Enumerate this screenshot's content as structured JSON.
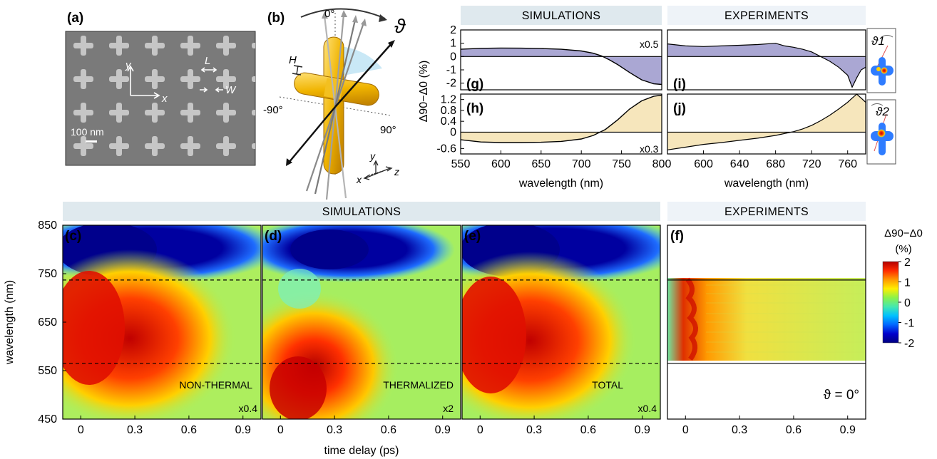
{
  "panels": {
    "a": "(a)",
    "b": "(b)",
    "c": "(c)",
    "d": "(d)",
    "e": "(e)",
    "f": "(f)",
    "g": "(g)",
    "h": "(h)",
    "i": "(i)",
    "j": "(j)"
  },
  "headers": {
    "top_sim": "SIMULATIONS",
    "top_exp": "EXPERIMENTS",
    "bottom_sim": "SIMULATIONS",
    "bottom_exp": "EXPERIMENTS"
  },
  "sem": {
    "x_label": "x",
    "y_label": "y",
    "L_label": "L",
    "W_label": "W",
    "scale_bar": "100 nm"
  },
  "schematic": {
    "theta_symbol": "ϑ",
    "H_label": "H",
    "angle_top": "0°",
    "angle_left": "-90°",
    "angle_right": "90°",
    "axis_x": "x",
    "axis_y": "y",
    "axis_z": "z"
  },
  "insets": {
    "i_label": "ϑ1",
    "j_label": "ϑ2"
  },
  "colorbar": {
    "title": "Δ90−Δ0",
    "unit": "(%)",
    "ticks": [
      "2",
      "1",
      "0",
      "-1",
      "-2"
    ],
    "colors": [
      "#b30000",
      "#ff2a00",
      "#ff9900",
      "#ffee00",
      "#8cf24a",
      "#44e8b0",
      "#00c0ff",
      "#0066ff",
      "#0000cc",
      "#000080"
    ]
  },
  "scale_notes": {
    "g": "x0.5",
    "h": "x0.3",
    "c": "x0.4",
    "d": "x2",
    "e": "x0.4"
  },
  "maps": {
    "c_label": "NON-THERMAL",
    "d_label": "THERMALIZED",
    "e_label": "TOTAL",
    "f_label": "ϑ = 0°"
  },
  "chart_data": [
    {
      "type": "area",
      "panel": "g",
      "xlim": [
        550,
        800
      ],
      "ylim": [
        -2.5,
        2
      ],
      "x_ticks": [
        "550",
        "600",
        "650",
        "700",
        "750",
        "800"
      ],
      "y_ticks": [
        "2",
        "1",
        "0",
        "-1",
        "-2"
      ],
      "xlabel": "wavelength (nm)",
      "ylabel": "Δ90−Δ0 (%)",
      "x": [
        550,
        575,
        600,
        625,
        650,
        675,
        700,
        715,
        725,
        735,
        745,
        760,
        775,
        790,
        800
      ],
      "y": [
        0.55,
        0.62,
        0.64,
        0.63,
        0.6,
        0.55,
        0.42,
        0.25,
        0.05,
        -0.25,
        -0.6,
        -1.2,
        -1.75,
        -2.05,
        -2.1
      ]
    },
    {
      "type": "area",
      "panel": "h",
      "xlim": [
        550,
        800
      ],
      "ylim": [
        -0.8,
        1.4
      ],
      "x_ticks": [
        "550",
        "600",
        "650",
        "700",
        "750",
        "800"
      ],
      "y_ticks": [
        "1.2",
        "0.8",
        "0.4",
        "0",
        "-0.6"
      ],
      "xlabel": "wavelength (nm)",
      "ylabel": "Δ90−Δ0 (%)",
      "x": [
        550,
        575,
        600,
        625,
        650,
        675,
        700,
        715,
        730,
        745,
        760,
        775,
        790,
        800
      ],
      "y": [
        -0.28,
        -0.36,
        -0.38,
        -0.38,
        -0.37,
        -0.34,
        -0.25,
        -0.12,
        0.1,
        0.45,
        0.85,
        1.15,
        1.32,
        1.36
      ]
    },
    {
      "type": "area",
      "panel": "i",
      "xlim": [
        560,
        780
      ],
      "ylim": [
        -2.5,
        2
      ],
      "x_ticks": [
        "600",
        "640",
        "680",
        "720",
        "760"
      ],
      "y_ticks": [
        "2",
        "1",
        "0",
        "-1",
        "-2"
      ],
      "xlabel": "wavelength (nm)",
      "x": [
        560,
        580,
        600,
        620,
        640,
        660,
        680,
        690,
        700,
        710,
        720,
        730,
        740,
        750,
        760,
        765,
        770,
        775,
        780
      ],
      "y": [
        0.95,
        0.8,
        0.75,
        0.8,
        0.85,
        0.9,
        1.0,
        0.8,
        0.7,
        0.55,
        0.35,
        0.0,
        -0.35,
        -0.8,
        -1.4,
        -2.3,
        -1.6,
        -1.0,
        -0.8
      ]
    },
    {
      "type": "area",
      "panel": "j",
      "xlim": [
        560,
        780
      ],
      "ylim": [
        -0.8,
        1.4
      ],
      "x_ticks": [
        "600",
        "640",
        "680",
        "720",
        "760"
      ],
      "y_ticks": [
        "1.2",
        "0.8",
        "0.4",
        "0",
        "-0.6"
      ],
      "xlabel": "wavelength (nm)",
      "x": [
        560,
        580,
        600,
        620,
        640,
        660,
        680,
        700,
        710,
        720,
        730,
        740,
        750,
        760,
        765,
        770,
        775,
        780
      ],
      "y": [
        -0.65,
        -0.55,
        -0.45,
        -0.38,
        -0.3,
        -0.22,
        -0.12,
        0.02,
        0.12,
        0.25,
        0.42,
        0.62,
        0.85,
        1.1,
        1.25,
        1.4,
        1.25,
        1.1
      ]
    },
    {
      "type": "heatmap",
      "panels": [
        "c",
        "d",
        "e",
        "f"
      ],
      "xlabel": "time delay (ps)",
      "ylabel": "wavelength (nm)",
      "xlim": [
        -0.1,
        1.0
      ],
      "ylim": [
        450,
        850
      ],
      "x_ticks": [
        "0",
        "0.3",
        "0.6",
        "0.9"
      ],
      "y_ticks": [
        "850",
        "750",
        "650",
        "550",
        "450"
      ],
      "dashed_lines_nm": [
        737,
        565
      ],
      "experiment_window_nm": [
        565,
        737
      ]
    }
  ]
}
